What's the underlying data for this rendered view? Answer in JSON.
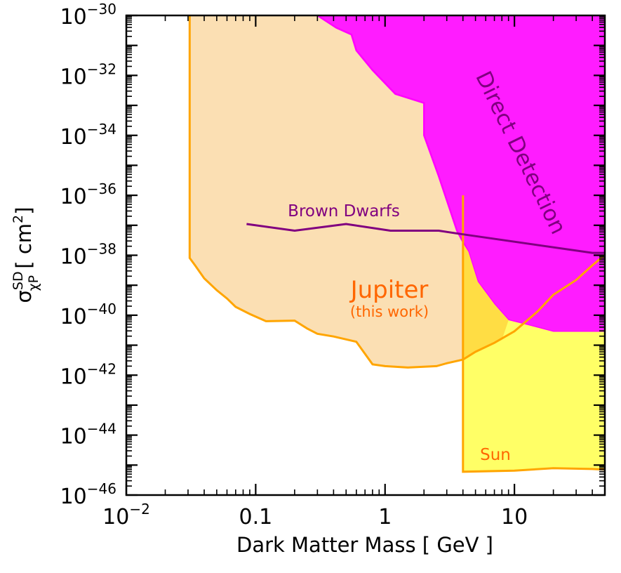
{
  "chart_data": {
    "type": "area",
    "title": "",
    "xlabel": "Dark Matter Mass [ GeV ]",
    "ylabel": "σ",
    "ylabel_sub": "χP",
    "ylabel_sup": "SD",
    "ylabel_unit_open": " [ cm",
    "ylabel_unit_sup": "2",
    "ylabel_unit_close": "]",
    "x_scale": "log",
    "y_scale": "log",
    "xlim": [
      0.01,
      50
    ],
    "ylim": [
      1e-46,
      1e-30
    ],
    "grid": false,
    "legend": "none",
    "x_ticks": [
      {
        "value": 0.01,
        "base": "10",
        "exp": "−2"
      },
      {
        "value": 0.1,
        "label": "0.1"
      },
      {
        "value": 1,
        "label": "1"
      },
      {
        "value": 10,
        "label": "10"
      }
    ],
    "y_ticks": [
      {
        "value": 1e-30,
        "base": "10",
        "exp": "−30"
      },
      {
        "value": 1e-32,
        "base": "10",
        "exp": "−32"
      },
      {
        "value": 1e-34,
        "base": "10",
        "exp": "−34"
      },
      {
        "value": 1e-36,
        "base": "10",
        "exp": "−36"
      },
      {
        "value": 1e-38,
        "base": "10",
        "exp": "−38"
      },
      {
        "value": 1e-40,
        "base": "10",
        "exp": "−40"
      },
      {
        "value": 1e-42,
        "base": "10",
        "exp": "−42"
      },
      {
        "value": 1e-44,
        "base": "10",
        "exp": "−44"
      },
      {
        "value": 1e-46,
        "base": "10",
        "exp": "−46"
      }
    ],
    "colors": {
      "jupiter_fill": "#fbdfb3",
      "jupiter_line": "#ffa500",
      "direct_fill": "#ff1cff",
      "direct_line": "#ff00ff",
      "sun_fill": "#ffff66",
      "overlap_fill": "#ffdd44",
      "brown_line": "#800080",
      "jupiter_text": "#ff6600",
      "sun_text": "#ff6600",
      "direct_text": "#800080",
      "brown_text": "#800080"
    },
    "series": [
      {
        "name": "Jupiter",
        "kind": "region",
        "points": [
          [
            0.0309,
            1e-30
          ],
          [
            0.0309,
            8.1e-39
          ],
          [
            0.034,
            4.6e-39
          ],
          [
            0.04,
            1.7e-39
          ],
          [
            0.05,
            6.8e-40
          ],
          [
            0.06,
            3.6e-40
          ],
          [
            0.07,
            1.9e-40
          ],
          [
            0.09,
            1.1e-40
          ],
          [
            0.12,
            6.3e-41
          ],
          [
            0.2,
            6.6e-41
          ],
          [
            0.25,
            3.6e-41
          ],
          [
            0.3,
            2.4e-41
          ],
          [
            0.4,
            1.95e-41
          ],
          [
            0.6,
            1.3e-41
          ],
          [
            0.8,
            2.3e-42
          ],
          [
            1.0,
            2e-42
          ],
          [
            1.5,
            1.8e-42
          ],
          [
            2.5,
            2e-42
          ],
          [
            3.0,
            2.5e-42
          ],
          [
            4.0,
            3.3e-42
          ],
          [
            5.0,
            6e-42
          ],
          [
            7.0,
            1.2e-41
          ],
          [
            10.0,
            2.9e-41
          ],
          [
            15.0,
            1.3e-40
          ],
          [
            20.0,
            4.8e-40
          ],
          [
            30.0,
            1.5e-39
          ],
          [
            40.0,
            4.6e-39
          ],
          [
            50.0,
            1.03e-38
          ],
          [
            50.0,
            1e-30
          ]
        ]
      },
      {
        "name": "Direct Detection",
        "kind": "region",
        "points": [
          [
            0.3,
            1e-30
          ],
          [
            0.42,
            3.9e-31
          ],
          [
            0.55,
            2.3e-31
          ],
          [
            0.6,
            6.8e-32
          ],
          [
            0.8,
            1.5e-32
          ],
          [
            1.2,
            2.4e-33
          ],
          [
            2.0,
            1.2e-33
          ],
          [
            2.0,
            1e-34
          ],
          [
            2.6,
            4.3e-36
          ],
          [
            3.6,
            6.5e-38
          ],
          [
            4.4,
            1.3e-38
          ],
          [
            5.2,
            1.3e-39
          ],
          [
            7.0,
            2.3e-40
          ],
          [
            9.0,
            6.8e-41
          ],
          [
            12.0,
            5e-41
          ],
          [
            20.0,
            2.8e-41
          ],
          [
            50.0,
            2.8e-41
          ],
          [
            50.0,
            1e-30
          ]
        ]
      },
      {
        "name": "Sun",
        "kind": "region",
        "points": [
          [
            4.0,
            1e-36
          ],
          [
            4.0,
            6e-46
          ],
          [
            10.0,
            6.5e-46
          ],
          [
            20.0,
            7.9e-46
          ],
          [
            40.0,
            7.4e-46
          ],
          [
            50.0,
            7.1e-46
          ],
          [
            50.0,
            2.8e-41
          ],
          [
            20.0,
            2.8e-41
          ],
          [
            12.0,
            5e-41
          ],
          [
            9.0,
            6.8e-41
          ],
          [
            7.0,
            2.3e-40
          ],
          [
            5.2,
            1.3e-39
          ],
          [
            4.4,
            1.3e-38
          ],
          [
            4.0,
            2.5e-38
          ]
        ]
      },
      {
        "name": "Brown Dwarfs",
        "kind": "line",
        "points": [
          [
            0.085,
            1.1e-37
          ],
          [
            0.2,
            6.6e-38
          ],
          [
            0.5,
            1.1e-37
          ],
          [
            1.1,
            6.6e-38
          ],
          [
            2.6,
            6.6e-38
          ],
          [
            4.0,
            5e-38
          ],
          [
            40.0,
            1.2e-38
          ],
          [
            50.0,
            1.2e-38
          ]
        ]
      }
    ],
    "annotations": {
      "jupiter": "Jupiter",
      "jupiter_sub": "(this work)",
      "brown_dwarfs": "Brown Dwarfs",
      "direct_detection": "Direct Detection",
      "sun": "Sun"
    }
  }
}
